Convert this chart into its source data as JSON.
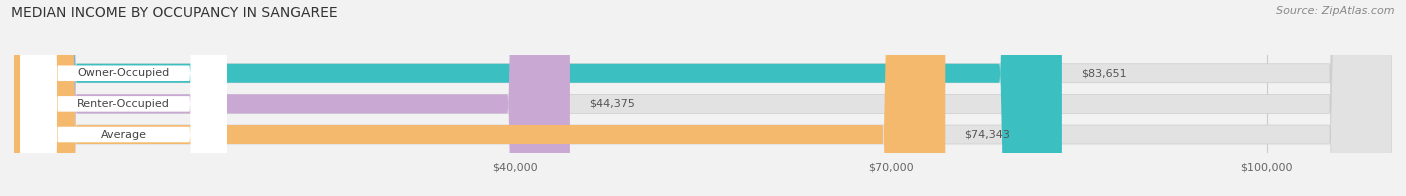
{
  "title": "MEDIAN INCOME BY OCCUPANCY IN SANGAREE",
  "source": "Source: ZipAtlas.com",
  "categories": [
    "Owner-Occupied",
    "Renter-Occupied",
    "Average"
  ],
  "values": [
    83651,
    44375,
    74343
  ],
  "labels": [
    "$83,651",
    "$44,375",
    "$74,343"
  ],
  "bar_colors": [
    "#3bbfc0",
    "#c9a8d4",
    "#f5b96e"
  ],
  "xlim_data": [
    0,
    110000
  ],
  "xlim_display": [
    0,
    110000
  ],
  "xticks": [
    40000,
    70000,
    100000
  ],
  "xtick_labels": [
    "$40,000",
    "$70,000",
    "$100,000"
  ],
  "background_color": "#f2f2f2",
  "bar_bg_color": "#e2e2e2",
  "title_fontsize": 10,
  "source_fontsize": 8,
  "bar_fontsize": 8,
  "cat_fontsize": 8,
  "bar_height": 0.62,
  "figsize": [
    14.06,
    1.96
  ],
  "dpi": 100,
  "label_inside_threshold": 90000
}
